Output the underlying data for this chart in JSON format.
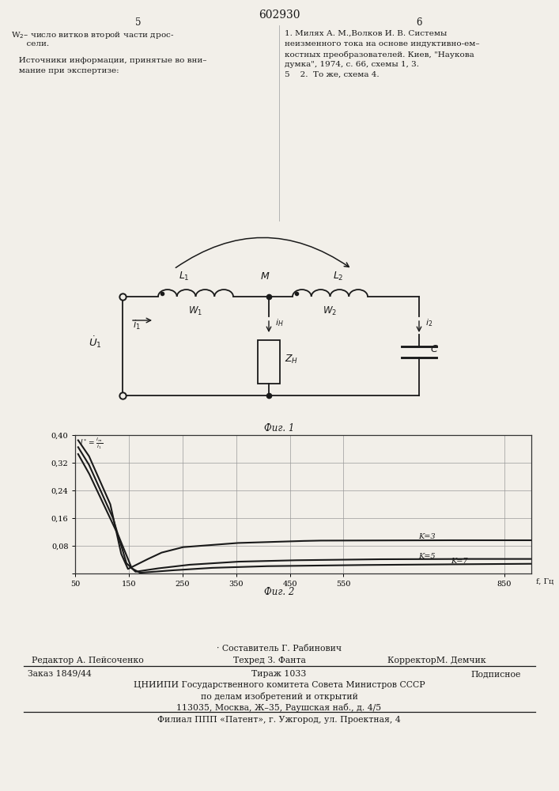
{
  "page_title": "602930",
  "bg_color": "#f2efe9",
  "text_color": "#1a1a1a",
  "fig1_caption": "Фиг. 1",
  "fig2_caption": "Фиг. 2",
  "graph_ytick_labels": [
    "",
    "0,08",
    "0,16",
    "0,24",
    "0,32",
    "0,40"
  ],
  "graph_xtick_labels": [
    "50",
    "150",
    "250",
    "350",
    "450",
    "550",
    "850"
  ],
  "graph_xticks": [
    50,
    150,
    250,
    350,
    450,
    550,
    850
  ],
  "graph_yticks": [
    0.0,
    0.08,
    0.16,
    0.24,
    0.32,
    0.4
  ],
  "footer_sestavitel": "· Составитель Г. Рабинович",
  "footer_redaktor": "Редактор А. Пейсоченко",
  "footer_tehred": "Техред З. Фанта",
  "footer_korrektor": "КорректорМ. Демчик",
  "footer_zakaz": "Заказ 1849/44",
  "footer_tirazh": "Тираж 1033",
  "footer_podpisnoe": "Подписное",
  "footer_cniipи": "ЦНИИПИ Государственного комитета Совета Министров СССР",
  "footer_po_delam": "по делам изобретений и открытий",
  "footer_addr": "113035, Москва, Ж–35, Раушская наб., д. 4/5",
  "footer_filial": "Филиал ППП «Патент», г. Ужгород, ул. Проектная, 4"
}
